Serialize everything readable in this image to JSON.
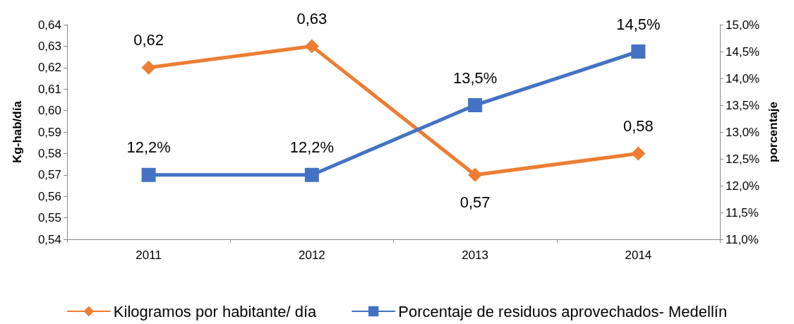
{
  "chart_data": {
    "type": "line",
    "ylabel": "Kg-hab/día",
    "y2label": "porcentaje",
    "categories": [
      "2011",
      "2012",
      "2013",
      "2014"
    ],
    "series": [
      {
        "name": "Kilogramos por habitante/ día",
        "color": "#ed7d31",
        "marker": "diamond",
        "values": [
          0.62,
          0.63,
          0.57,
          0.58
        ],
        "value_labels": [
          "0,62",
          "0,63",
          "0,57",
          "0,58"
        ]
      },
      {
        "name": "Porcentaje de residuos aprovechados- Medellín",
        "color": "#4472c4",
        "marker": "square",
        "axis": "y2",
        "values": [
          12.2,
          12.2,
          13.5,
          14.5
        ],
        "value_labels": [
          "12,2%",
          "12,2%",
          "13,5%",
          "14,5%"
        ]
      }
    ],
    "ylim": [
      0.54,
      0.64
    ],
    "yticks": [
      {
        "value": 0.54,
        "label": "0,54"
      },
      {
        "value": 0.55,
        "label": "0,55"
      },
      {
        "value": 0.56,
        "label": "0,56"
      },
      {
        "value": 0.57,
        "label": "0,57"
      },
      {
        "value": 0.58,
        "label": "0,58"
      },
      {
        "value": 0.59,
        "label": "0,59"
      },
      {
        "value": 0.6,
        "label": "0,60"
      },
      {
        "value": 0.61,
        "label": "0,61"
      },
      {
        "value": 0.62,
        "label": "0,62"
      },
      {
        "value": 0.63,
        "label": "0,63"
      },
      {
        "value": 0.64,
        "label": "0,64"
      }
    ],
    "y2lim": [
      11,
      15
    ],
    "y2ticks": [
      {
        "value": 11,
        "label": "11,0%"
      },
      {
        "value": 11.5,
        "label": "11,5%"
      },
      {
        "value": 12,
        "label": "12,0%"
      },
      {
        "value": 12.5,
        "label": "12,5%"
      },
      {
        "value": 13,
        "label": "13,0%"
      },
      {
        "value": 13.5,
        "label": "13,5%"
      },
      {
        "value": 14,
        "label": "14,0%"
      },
      {
        "value": 14.5,
        "label": "14,5%"
      },
      {
        "value": 15,
        "label": "15,0%"
      }
    ],
    "grid": false,
    "legend": "bottom",
    "line_style": "solid"
  }
}
